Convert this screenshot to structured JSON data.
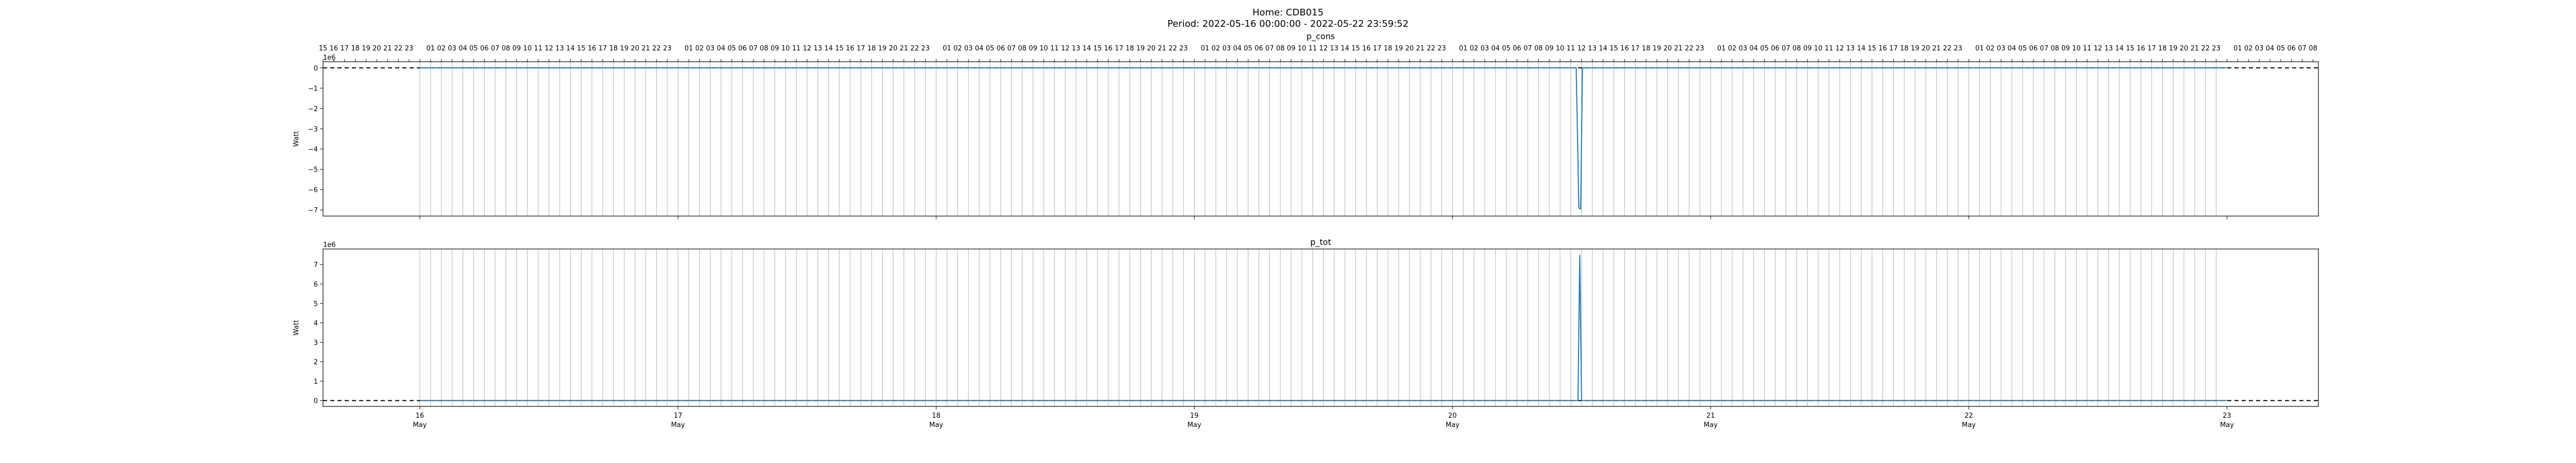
{
  "figure": {
    "title_line1": "Home: CDB015",
    "title_line2": "Period: 2022-05-16 00:00:00 - 2022-05-22 23:59:52"
  },
  "chart_data": [
    {
      "type": "line",
      "title": "p_cons",
      "ylabel": "Watt",
      "offset_label": "1e6",
      "x_range": [
        "2022-05-15 15:00",
        "2022-05-23 08:30"
      ],
      "ylim": [
        -7.3,
        0.3
      ],
      "yticks": [
        0,
        -1,
        -2,
        -3,
        -4,
        -5,
        -6,
        -7
      ],
      "ytick_labels": [
        "0",
        "−1",
        "−2",
        "−3",
        "−4",
        "−5",
        "−6",
        "−7"
      ],
      "baseline_value": 0,
      "x": [
        "2022-05-16 00:00",
        "2022-05-20 11:30",
        "2022-05-20 11:45",
        "2022-05-20 11:55",
        "2022-05-20 12:05",
        "2022-05-22 23:59"
      ],
      "y": [
        0,
        0,
        -6.9,
        -6.95,
        0,
        0
      ],
      "grid": "hourly vertical",
      "top_hour_labels": true
    },
    {
      "type": "line",
      "title": "p_tot",
      "ylabel": "Watt",
      "offset_label": "1e6",
      "x_range": [
        "2022-05-15 15:00",
        "2022-05-23 08:30"
      ],
      "ylim": [
        -0.3,
        7.8
      ],
      "yticks": [
        0,
        1,
        2,
        3,
        4,
        5,
        6,
        7
      ],
      "ytick_labels": [
        "0",
        "1",
        "2",
        "3",
        "4",
        "5",
        "6",
        "7"
      ],
      "baseline_value": 0,
      "x": [
        "2022-05-16 00:00",
        "2022-05-20 11:40",
        "2022-05-20 11:50",
        "2022-05-20 12:00",
        "2022-05-22 23:59"
      ],
      "y": [
        0,
        0,
        7.5,
        0,
        0
      ],
      "grid": "hourly vertical",
      "top_hour_labels": false,
      "xaxis_day_labels": [
        "16",
        "17",
        "18",
        "19",
        "20",
        "21",
        "22",
        "23"
      ],
      "xaxis_month_label": "May"
    }
  ],
  "colors": {
    "line": "#1f77b4",
    "grid": "#b0b0b0",
    "baseline": "#000000",
    "axes": "#000000"
  }
}
